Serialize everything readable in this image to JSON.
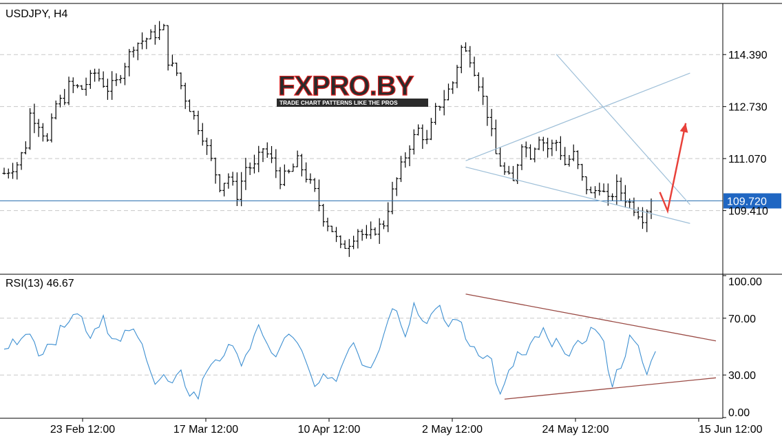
{
  "chart_data": [
    {
      "type": "candlestick",
      "title": "USDJPY, H4",
      "symbol": "USDJPY",
      "timeframe": "H4",
      "x_tick_labels": [
        "23 Feb 12:00",
        "17 Mar 12:00",
        "10 Apr 12:00",
        "2 May 12:00",
        "24 May 12:00",
        "15 Jun 12:00"
      ],
      "y_tick_labels": [
        "114.390",
        "112.730",
        "111.070",
        "109.410"
      ],
      "ylim": [
        107.4,
        116.0
      ],
      "current_price": "109.720",
      "current_price_value": 109.72,
      "grid": true,
      "close_path": [
        [
          0,
          110.6
        ],
        [
          3,
          110.9
        ],
        [
          5,
          111.5
        ],
        [
          6,
          112.5
        ],
        [
          8,
          112.2
        ],
        [
          10,
          111.6
        ],
        [
          12,
          112.8
        ],
        [
          14,
          113.0
        ],
        [
          15,
          113.4
        ],
        [
          18,
          113.3
        ],
        [
          21,
          113.8
        ],
        [
          24,
          113.3
        ],
        [
          26,
          113.5
        ],
        [
          30,
          114.7
        ],
        [
          33,
          114.9
        ],
        [
          37,
          115.2
        ],
        [
          38,
          114.2
        ],
        [
          40,
          113.8
        ],
        [
          42,
          113.0
        ],
        [
          44,
          112.4
        ],
        [
          46,
          111.8
        ],
        [
          48,
          111.0
        ],
        [
          50,
          110.2
        ],
        [
          52,
          110.5
        ],
        [
          54,
          109.9
        ],
        [
          56,
          110.8
        ],
        [
          58,
          110.8
        ],
        [
          60,
          111.4
        ],
        [
          62,
          111.0
        ],
        [
          64,
          110.4
        ],
        [
          66,
          110.6
        ],
        [
          68,
          111.0
        ],
        [
          70,
          110.5
        ],
        [
          72,
          110.0
        ],
        [
          74,
          109.2
        ],
        [
          76,
          108.8
        ],
        [
          78,
          108.2
        ],
        [
          80,
          108.4
        ],
        [
          82,
          108.8
        ],
        [
          84,
          108.5
        ],
        [
          86,
          108.8
        ],
        [
          88,
          109.0
        ],
        [
          90,
          110.0
        ],
        [
          92,
          110.8
        ],
        [
          94,
          111.5
        ],
        [
          96,
          112.0
        ],
        [
          98,
          111.6
        ],
        [
          100,
          112.6
        ],
        [
          102,
          113.0
        ],
        [
          104,
          113.5
        ],
        [
          106,
          114.6
        ],
        [
          108,
          114.3
        ],
        [
          110,
          113.5
        ],
        [
          112,
          112.5
        ],
        [
          114,
          111.2
        ],
        [
          116,
          110.6
        ],
        [
          118,
          110.3
        ],
        [
          120,
          111.6
        ],
        [
          122,
          111.2
        ],
        [
          124,
          111.8
        ],
        [
          126,
          111.4
        ],
        [
          128,
          111.6
        ],
        [
          130,
          110.9
        ],
        [
          132,
          111.2
        ],
        [
          134,
          110.4
        ],
        [
          136,
          109.9
        ],
        [
          138,
          110.2
        ],
        [
          140,
          109.7
        ],
        [
          142,
          110.2
        ],
        [
          144,
          109.8
        ],
        [
          146,
          109.5
        ],
        [
          148,
          109.2
        ],
        [
          150,
          109.72
        ]
      ],
      "lines": [
        {
          "name": "upper-trendline",
          "color": "#9ebfd8",
          "from": [
            107,
            111.0
          ],
          "to": [
            159,
            113.8
          ]
        },
        {
          "name": "lower-trendline",
          "color": "#9ebfd8",
          "from": [
            107,
            110.8
          ],
          "to": [
            159,
            109.0
          ]
        },
        {
          "name": "falling-resistance",
          "color": "#9ebfd8",
          "from": [
            128,
            114.4
          ],
          "to": [
            159,
            109.6
          ]
        }
      ],
      "forecast_arrow": {
        "color": "#e8413a",
        "points": [
          [
            152,
            110.0
          ],
          [
            153.8,
            109.4
          ],
          [
            158,
            112.2
          ]
        ]
      }
    },
    {
      "type": "line",
      "title": "RSI(13) 46.67",
      "indicator": "RSI(13)",
      "value": "46.67",
      "y_tick_labels": [
        "100.00",
        "70.00",
        "30.00",
        "0.00"
      ],
      "ylim": [
        0,
        100
      ],
      "levels": [
        70,
        30
      ],
      "color": "#3d8fd1",
      "series_path": [
        [
          0,
          47
        ],
        [
          3,
          55
        ],
        [
          5,
          63
        ],
        [
          7,
          50
        ],
        [
          8,
          42
        ],
        [
          10,
          56
        ],
        [
          12,
          53
        ],
        [
          14,
          68
        ],
        [
          16,
          75
        ],
        [
          18,
          70
        ],
        [
          20,
          58
        ],
        [
          23,
          72
        ],
        [
          25,
          55
        ],
        [
          27,
          52
        ],
        [
          29,
          63
        ],
        [
          31,
          55
        ],
        [
          33,
          45
        ],
        [
          35,
          25
        ],
        [
          37,
          28
        ],
        [
          39,
          22
        ],
        [
          41,
          30
        ],
        [
          43,
          18
        ],
        [
          45,
          15
        ],
        [
          47,
          34
        ],
        [
          49,
          43
        ],
        [
          51,
          40
        ],
        [
          53,
          55
        ],
        [
          55,
          38
        ],
        [
          57,
          44
        ],
        [
          59,
          68
        ],
        [
          61,
          50
        ],
        [
          63,
          40
        ],
        [
          65,
          58
        ],
        [
          67,
          54
        ],
        [
          69,
          45
        ],
        [
          71,
          30
        ],
        [
          73,
          22
        ],
        [
          75,
          31
        ],
        [
          77,
          26
        ],
        [
          79,
          45
        ],
        [
          81,
          55
        ],
        [
          83,
          40
        ],
        [
          85,
          38
        ],
        [
          87,
          48
        ],
        [
          89,
          72
        ],
        [
          91,
          78
        ],
        [
          93,
          60
        ],
        [
          95,
          80
        ],
        [
          97,
          68
        ],
        [
          99,
          72
        ],
        [
          101,
          75
        ],
        [
          103,
          64
        ],
        [
          105,
          72
        ],
        [
          107,
          55
        ],
        [
          109,
          50
        ],
        [
          111,
          45
        ],
        [
          113,
          40
        ],
        [
          115,
          14
        ],
        [
          117,
          30
        ],
        [
          119,
          45
        ],
        [
          121,
          42
        ],
        [
          123,
          55
        ],
        [
          125,
          60
        ],
        [
          127,
          48
        ],
        [
          129,
          55
        ],
        [
          131,
          42
        ],
        [
          133,
          50
        ],
        [
          135,
          58
        ],
        [
          137,
          64
        ],
        [
          139,
          50
        ],
        [
          141,
          24
        ],
        [
          143,
          38
        ],
        [
          145,
          55
        ],
        [
          147,
          48
        ],
        [
          149,
          30
        ],
        [
          151,
          46.67
        ]
      ],
      "lines": [
        {
          "name": "rsi-upper-line",
          "color": "#9a4a44",
          "from": [
            107,
            87
          ],
          "to": [
            165,
            54
          ]
        },
        {
          "name": "rsi-lower-line",
          "color": "#9a4a44",
          "from": [
            116,
            13
          ],
          "to": [
            165,
            28
          ]
        }
      ]
    }
  ],
  "watermark": {
    "text": "FXPRO.BY",
    "tagline": "TRADE CHART PATTERNS LIKE THE PROS",
    "text_color": "#2b2b2b",
    "accent_color": "#e02020"
  },
  "colors": {
    "candle": "#000000",
    "grid": "#c8c8c8",
    "price_line": "#2a6fb0",
    "price_box": "#1f66c2",
    "axis": "#000000"
  }
}
